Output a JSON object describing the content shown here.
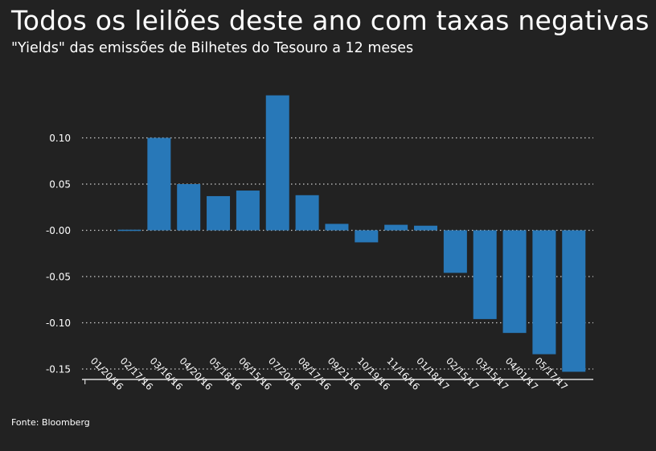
{
  "title": "Todos os leilões deste ano com taxas negativas",
  "subtitle": "\"Yields\" das emissões de Bilhetes do Tesouro a 12 meses",
  "source": "Fonte: Bloomberg",
  "colors": {
    "background": "#222222",
    "bar": "#2878b8",
    "text": "#ffffff",
    "grid": "#cccccc"
  },
  "chart_data": {
    "type": "bar",
    "title": "Todos os leilões deste ano com taxas negativas",
    "subtitle": "\"Yields\" das emissões de Bilhetes do Tesouro a 12 meses",
    "xlabel": "",
    "ylabel": "",
    "ylim": [
      -0.16,
      0.16
    ],
    "yticks": [
      0.1,
      0.05,
      0.0,
      -0.05,
      -0.1,
      -0.15
    ],
    "ytick_labels": [
      "0.10",
      "0.05",
      "-0.00",
      "-0.05",
      "-0.10",
      "-0.15"
    ],
    "grid": true,
    "categories": [
      "01/20/16",
      "02/17/16",
      "03/16/16",
      "04/20/16",
      "05/18/16",
      "06/15/16",
      "07/20/16",
      "08/17/16",
      "09/21/16",
      "10/19/16",
      "11/16/16",
      "01/18/17",
      "02/15/17",
      "03/15/17",
      "04/01/17",
      "05/17/17"
    ],
    "values": [
      -0.001,
      0.1,
      0.05,
      0.037,
      0.043,
      0.146,
      0.038,
      0.007,
      -0.013,
      0.006,
      0.005,
      -0.046,
      -0.096,
      -0.111,
      -0.134,
      -0.153
    ]
  }
}
